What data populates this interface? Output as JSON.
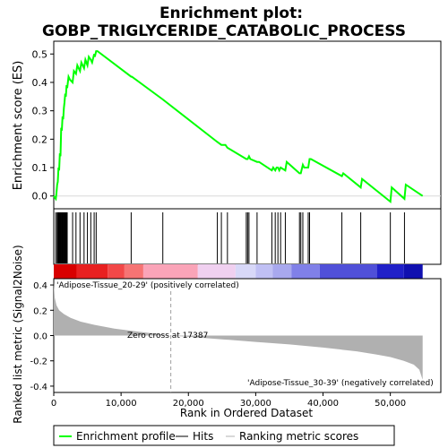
{
  "chart_data": {
    "type": "line",
    "title_line1": "Enrichment plot:",
    "title_line2": "GOBP_TRIGLYCERIDE_CATABOLIC_PROCESS",
    "top_panel": {
      "ylabel": "Enrichment score (ES)",
      "ylim": [
        -0.045,
        0.545
      ],
      "yticks": [
        0.0,
        0.1,
        0.2,
        0.3,
        0.4,
        0.5
      ],
      "ytick_labels": [
        "0.0",
        "0.1",
        "0.2",
        "0.3",
        "0.4",
        "0.5"
      ],
      "series": [
        {
          "name": "Enrichment profile",
          "color": "#00ff00",
          "x": [
            0,
            300,
            400,
            500,
            600,
            700,
            800,
            900,
            1000,
            1100,
            1200,
            1300,
            1400,
            1500,
            1600,
            1700,
            1800,
            1900,
            2000,
            2200,
            2400,
            2800,
            3000,
            3300,
            3500,
            3900,
            4100,
            4500,
            4700,
            5000,
            5200,
            5500,
            5700,
            6000,
            6100,
            6300,
            6500,
            11500,
            11600,
            16200,
            24300,
            24900,
            25500,
            25800,
            28600,
            28800,
            29000,
            29200,
            30200,
            30500,
            32400,
            32600,
            32900,
            33100,
            33300,
            33500,
            33700,
            34400,
            34600,
            36500,
            36700,
            37000,
            37200,
            37800,
            38000,
            38200,
            42800,
            43000,
            45600,
            45800,
            50000,
            50200,
            52100,
            52300,
            54800
          ],
          "values": [
            0.0,
            -0.01,
            0.01,
            0.04,
            0.05,
            0.1,
            0.09,
            0.15,
            0.14,
            0.24,
            0.23,
            0.28,
            0.27,
            0.31,
            0.33,
            0.36,
            0.35,
            0.39,
            0.38,
            0.42,
            0.41,
            0.4,
            0.44,
            0.43,
            0.46,
            0.44,
            0.47,
            0.45,
            0.48,
            0.46,
            0.49,
            0.48,
            0.47,
            0.5,
            0.49,
            0.51,
            0.51,
            0.42,
            0.42,
            0.34,
            0.19,
            0.18,
            0.18,
            0.17,
            0.13,
            0.13,
            0.14,
            0.13,
            0.12,
            0.12,
            0.09,
            0.1,
            0.09,
            0.1,
            0.1,
            0.09,
            0.1,
            0.09,
            0.12,
            0.08,
            0.08,
            0.11,
            0.1,
            0.1,
            0.13,
            0.13,
            0.07,
            0.08,
            0.03,
            0.06,
            -0.02,
            0.03,
            -0.01,
            0.04,
            0.0
          ]
        }
      ]
    },
    "hits": {
      "name": "Hits",
      "positions": [
        300,
        500,
        600,
        700,
        800,
        900,
        1000,
        1100,
        1200,
        1300,
        1400,
        1500,
        1600,
        1700,
        1800,
        1900,
        2000,
        2800,
        3300,
        3900,
        4500,
        5000,
        5500,
        6000,
        6300,
        11500,
        16200,
        24300,
        24900,
        25800,
        28600,
        28800,
        29000,
        30200,
        32400,
        32900,
        33300,
        33700,
        34400,
        36500,
        36700,
        37000,
        37800,
        38000,
        42800,
        45600,
        50000,
        52100
      ]
    },
    "heatmap_bar": {
      "colors": [
        "#d80000",
        "#e82020",
        "#f24848",
        "#f67474",
        "#faa4b8",
        "#f0d0f0",
        "#d8d8f8",
        "#c0c0f4",
        "#a8a8ee",
        "#8080e8",
        "#5050d8",
        "#2020c8",
        "#1010b0"
      ],
      "boundaries": [
        0,
        3400,
        8000,
        10500,
        13300,
        21400,
        27000,
        30000,
        32500,
        35300,
        39500,
        48000,
        52000,
        54800
      ]
    },
    "bottom_panel": {
      "ylabel": "Ranked list metric (Signal2Noise)",
      "ylim": [
        -0.45,
        0.45
      ],
      "yticks": [
        -0.4,
        -0.2,
        0.0,
        0.2,
        0.4
      ],
      "ytick_labels": [
        "-0.4",
        "-0.2",
        "0.0",
        "0.2",
        "0.4"
      ],
      "series": [
        {
          "name": "Ranking metric scores",
          "color": "#b0b0b0",
          "x": [
            0,
            150,
            400,
            800,
            1500,
            2500,
            4000,
            6000,
            9000,
            12000,
            15000,
            17387,
            20000,
            25000,
            30000,
            35000,
            40000,
            45000,
            48000,
            50000,
            52000,
            53500,
            54300,
            54800
          ],
          "values": [
            0.42,
            0.3,
            0.24,
            0.2,
            0.17,
            0.14,
            0.11,
            0.085,
            0.055,
            0.035,
            0.015,
            0.0,
            -0.01,
            -0.03,
            -0.05,
            -0.07,
            -0.095,
            -0.125,
            -0.15,
            -0.17,
            -0.2,
            -0.23,
            -0.27,
            -0.35
          ]
        }
      ],
      "zero_cross_label": "Zero cross at 17387",
      "zero_cross": 17387,
      "pos_label": "'Adipose-Tissue_20-29' (positively correlated)",
      "neg_label": "'Adipose-Tissue_30-39' (negatively correlated)",
      "pos_label_color": "#cc0000",
      "neg_label_color": "#0000cc"
    },
    "xlabel": "Rank in Ordered Dataset",
    "xlim": [
      0,
      57500
    ],
    "xticks": [
      0,
      10000,
      20000,
      30000,
      40000,
      50000
    ],
    "xtick_labels": [
      "0",
      "10,000",
      "20,000",
      "30,000",
      "40,000",
      "50,000"
    ],
    "legend": {
      "placement": "bottom",
      "entries": [
        {
          "label": "Enrichment profile",
          "color": "#00ff00"
        },
        {
          "label": "Hits",
          "color": "#000000"
        },
        {
          "label": "Ranking metric scores",
          "color": "#b0b0b0"
        }
      ]
    }
  }
}
